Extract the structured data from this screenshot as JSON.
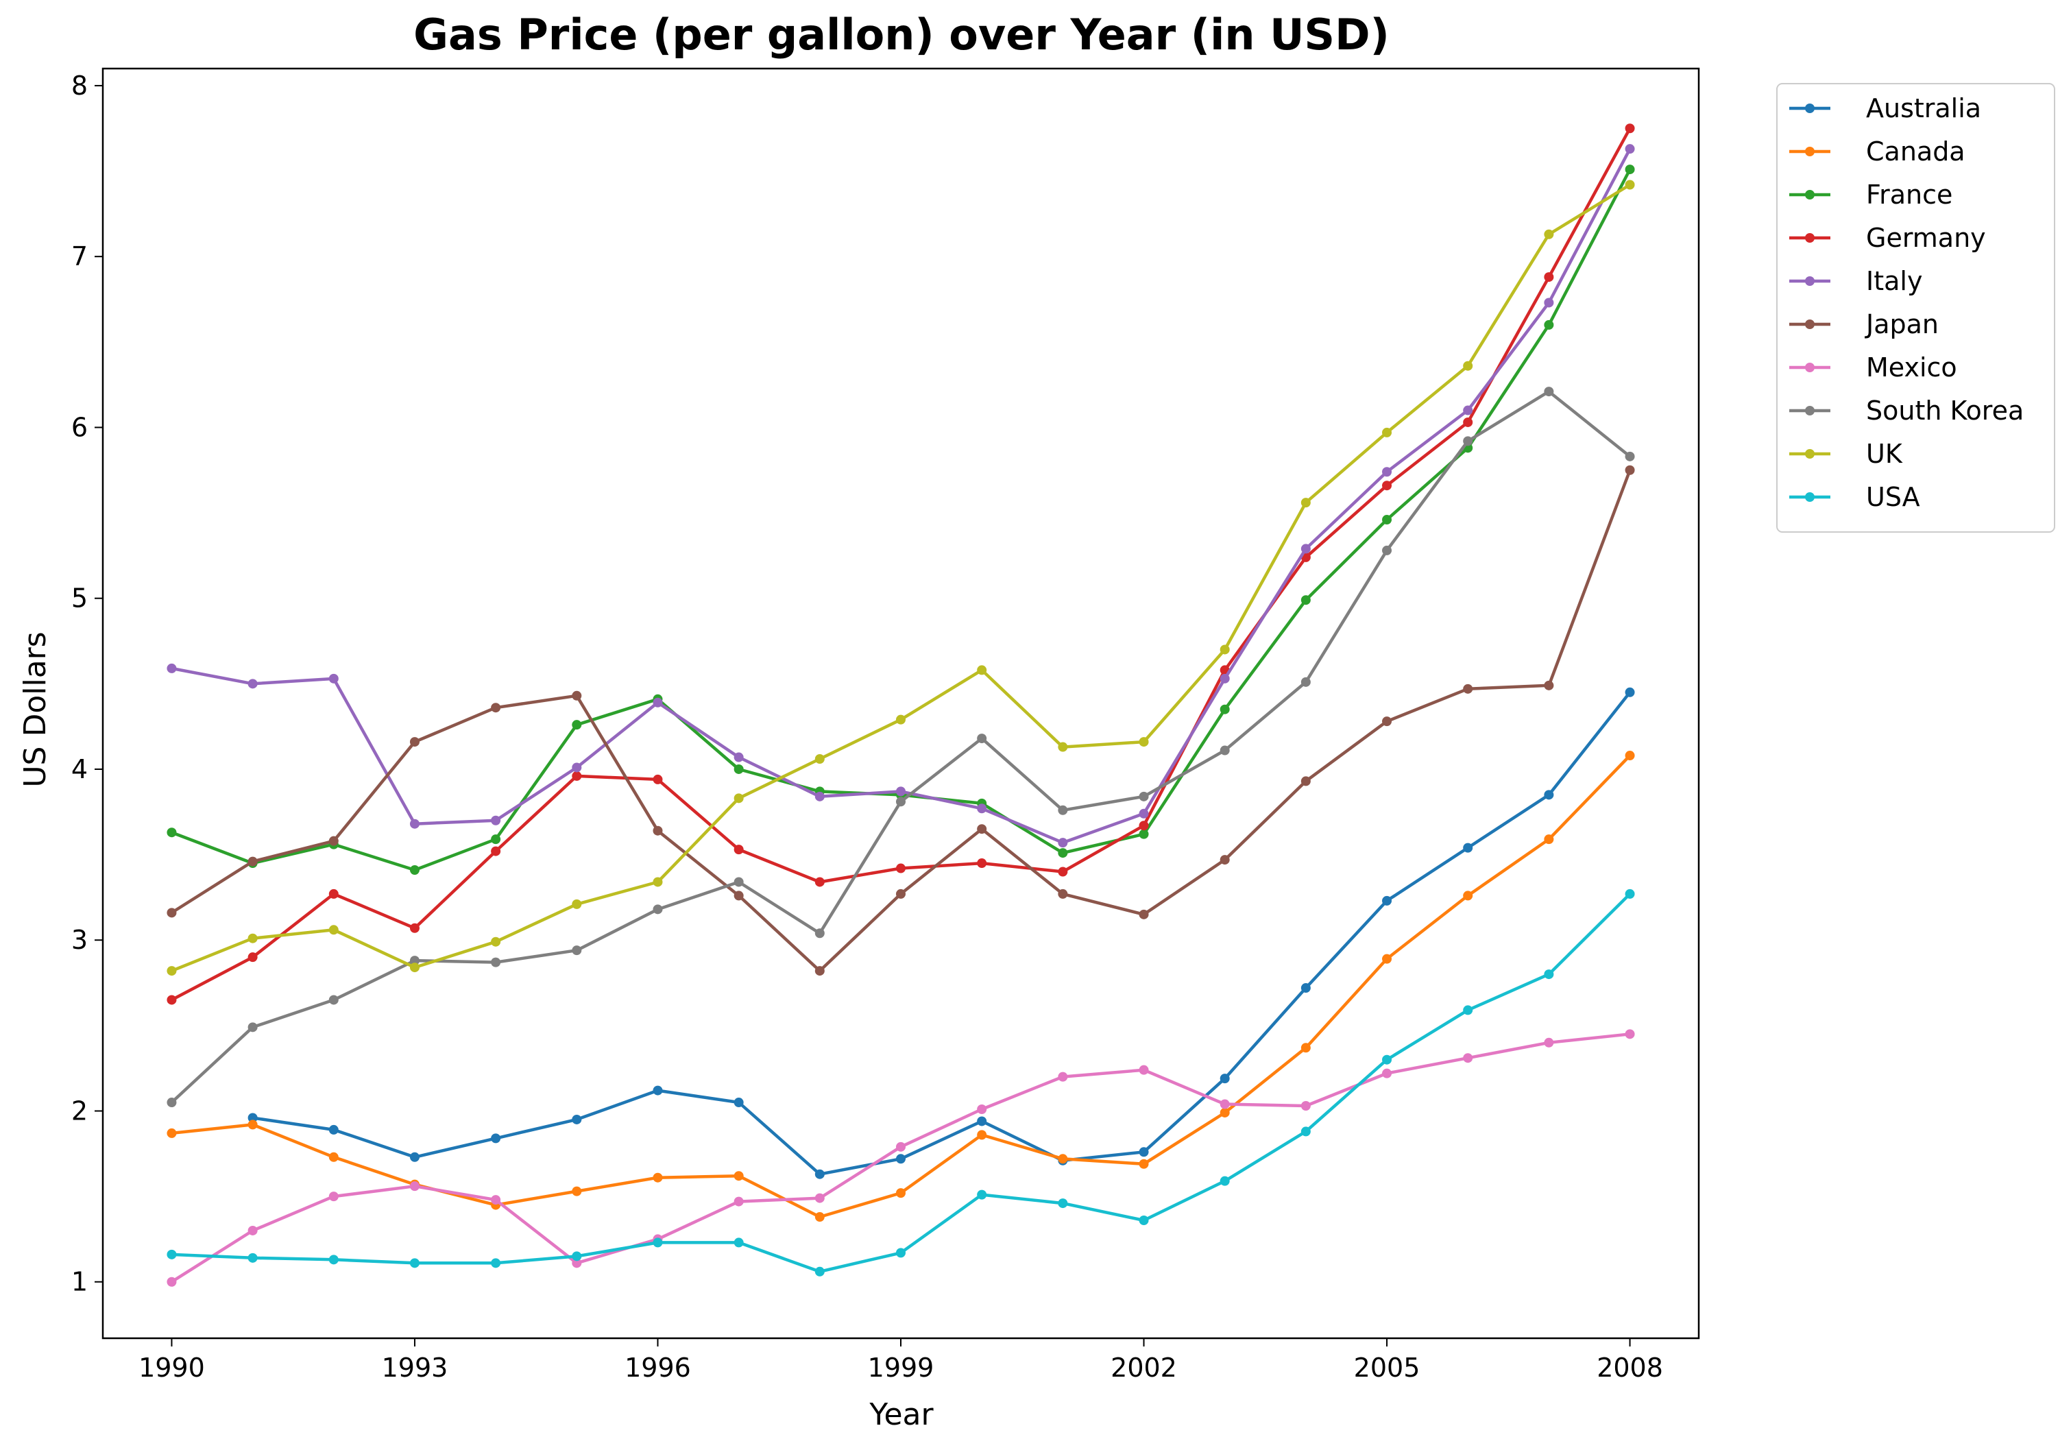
{
  "chart_data": {
    "type": "line",
    "title": "Gas Price (per gallon) over Year (in USD)",
    "xlabel": "Year",
    "ylabel": "US Dollars",
    "xlim": [
      1989.15,
      2008.85
    ],
    "ylim": [
      0.67,
      8.1
    ],
    "xticks": [
      1990,
      1993,
      1996,
      1999,
      2002,
      2005,
      2008
    ],
    "yticks": [
      1,
      2,
      3,
      4,
      5,
      6,
      7,
      8
    ],
    "grid": false,
    "legend_position": "outside-top-right",
    "x": [
      1990,
      1991,
      1992,
      1993,
      1994,
      1995,
      1996,
      1997,
      1998,
      1999,
      2000,
      2001,
      2002,
      2003,
      2004,
      2005,
      2006,
      2007,
      2008
    ],
    "series": [
      {
        "name": "Australia",
        "color": "#1f77b4",
        "x": [
          1991,
          1992,
          1993,
          1994,
          1995,
          1996,
          1997,
          1998,
          1999,
          2000,
          2001,
          2002,
          2003,
          2004,
          2005,
          2006,
          2007,
          2008
        ],
        "values": [
          1.96,
          1.89,
          1.73,
          1.84,
          1.95,
          2.12,
          2.05,
          1.63,
          1.72,
          1.94,
          1.71,
          1.76,
          2.19,
          2.72,
          3.23,
          3.54,
          3.85,
          4.45
        ]
      },
      {
        "name": "Canada",
        "color": "#ff7f0e",
        "x": [
          1990,
          1991,
          1992,
          1993,
          1994,
          1995,
          1996,
          1997,
          1998,
          1999,
          2000,
          2001,
          2002,
          2003,
          2004,
          2005,
          2006,
          2007,
          2008
        ],
        "values": [
          1.87,
          1.92,
          1.73,
          1.57,
          1.45,
          1.53,
          1.61,
          1.62,
          1.38,
          1.52,
          1.86,
          1.72,
          1.69,
          1.99,
          2.37,
          2.89,
          3.26,
          3.59,
          4.08
        ]
      },
      {
        "name": "France",
        "color": "#2ca02c",
        "x": [
          1990,
          1991,
          1992,
          1993,
          1994,
          1995,
          1996,
          1997,
          1998,
          1999,
          2000,
          2001,
          2002,
          2003,
          2004,
          2005,
          2006,
          2007,
          2008
        ],
        "values": [
          3.63,
          3.45,
          3.56,
          3.41,
          3.59,
          4.26,
          4.41,
          4.0,
          3.87,
          3.85,
          3.8,
          3.51,
          3.62,
          4.35,
          4.99,
          5.46,
          5.88,
          6.6,
          7.51
        ]
      },
      {
        "name": "Germany",
        "color": "#d62728",
        "x": [
          1990,
          1991,
          1992,
          1993,
          1994,
          1995,
          1996,
          1997,
          1998,
          1999,
          2000,
          2001,
          2002,
          2003,
          2004,
          2005,
          2006,
          2007,
          2008
        ],
        "values": [
          2.65,
          2.9,
          3.27,
          3.07,
          3.52,
          3.96,
          3.94,
          3.53,
          3.34,
          3.42,
          3.45,
          3.4,
          3.67,
          4.58,
          5.24,
          5.66,
          6.03,
          6.88,
          7.75
        ]
      },
      {
        "name": "Italy",
        "color": "#9467bd",
        "x": [
          1990,
          1991,
          1992,
          1993,
          1994,
          1995,
          1996,
          1997,
          1998,
          1999,
          2000,
          2001,
          2002,
          2003,
          2004,
          2005,
          2006,
          2007,
          2008
        ],
        "values": [
          4.59,
          4.5,
          4.53,
          3.68,
          3.7,
          4.01,
          4.39,
          4.07,
          3.84,
          3.87,
          3.77,
          3.57,
          3.74,
          4.53,
          5.29,
          5.74,
          6.1,
          6.73,
          7.63
        ]
      },
      {
        "name": "Japan",
        "color": "#8c564b",
        "x": [
          1990,
          1991,
          1992,
          1993,
          1994,
          1995,
          1996,
          1997,
          1998,
          1999,
          2000,
          2001,
          2002,
          2003,
          2004,
          2005,
          2006,
          2007,
          2008
        ],
        "values": [
          3.16,
          3.46,
          3.58,
          4.16,
          4.36,
          4.43,
          3.64,
          3.26,
          2.82,
          3.27,
          3.65,
          3.27,
          3.15,
          3.47,
          3.93,
          4.28,
          4.47,
          4.49,
          5.75
        ]
      },
      {
        "name": "Mexico",
        "color": "#e377c2",
        "x": [
          1990,
          1991,
          1992,
          1993,
          1994,
          1995,
          1996,
          1997,
          1998,
          1999,
          2000,
          2001,
          2002,
          2003,
          2004,
          2005,
          2006,
          2007,
          2008
        ],
        "values": [
          1.0,
          1.3,
          1.5,
          1.56,
          1.48,
          1.11,
          1.25,
          1.47,
          1.49,
          1.79,
          2.01,
          2.2,
          2.24,
          2.04,
          2.03,
          2.22,
          2.31,
          2.4,
          2.45
        ]
      },
      {
        "name": "South Korea",
        "color": "#7f7f7f",
        "x": [
          1990,
          1991,
          1992,
          1993,
          1994,
          1995,
          1996,
          1997,
          1998,
          1999,
          2000,
          2001,
          2002,
          2003,
          2004,
          2005,
          2006,
          2007,
          2008
        ],
        "values": [
          2.05,
          2.49,
          2.65,
          2.88,
          2.87,
          2.94,
          3.18,
          3.34,
          3.04,
          3.81,
          4.18,
          3.76,
          3.84,
          4.11,
          4.51,
          5.28,
          5.92,
          6.21,
          5.83
        ]
      },
      {
        "name": "UK",
        "color": "#bcbd22",
        "x": [
          1990,
          1991,
          1992,
          1993,
          1994,
          1995,
          1996,
          1997,
          1998,
          1999,
          2000,
          2001,
          2002,
          2003,
          2004,
          2005,
          2006,
          2007,
          2008
        ],
        "values": [
          2.82,
          3.01,
          3.06,
          2.84,
          2.99,
          3.21,
          3.34,
          3.83,
          4.06,
          4.29,
          4.58,
          4.13,
          4.16,
          4.7,
          5.56,
          5.97,
          6.36,
          7.13,
          7.42
        ]
      },
      {
        "name": "USA",
        "color": "#17becf",
        "x": [
          1990,
          1991,
          1992,
          1993,
          1994,
          1995,
          1996,
          1997,
          1998,
          1999,
          2000,
          2001,
          2002,
          2003,
          2004,
          2005,
          2006,
          2007,
          2008
        ],
        "values": [
          1.16,
          1.14,
          1.13,
          1.11,
          1.11,
          1.15,
          1.23,
          1.23,
          1.06,
          1.17,
          1.51,
          1.46,
          1.36,
          1.59,
          1.88,
          2.3,
          2.59,
          2.8,
          3.27
        ]
      }
    ]
  }
}
